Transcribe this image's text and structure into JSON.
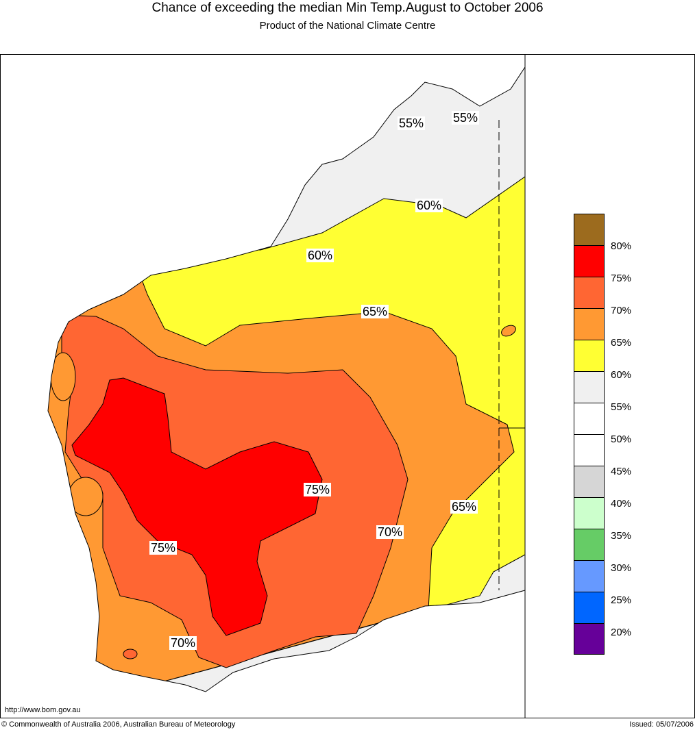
{
  "title": "Chance of exceeding the median Min Temp.August to October 2006",
  "subtitle": "Product of the National Climate Centre",
  "map_labels": [
    "55%",
    "55%",
    "60%",
    "60%",
    "65%",
    "65%",
    "70%",
    "70%",
    "75%",
    "75%"
  ],
  "legend": {
    "colors": [
      "#9c6b1e",
      "#ff0000",
      "#ff6633",
      "#ff9933",
      "#ffff33",
      "#f0f0f0",
      "#ffffff",
      "#ffffff",
      "#d6d6d6",
      "#ccffcc",
      "#66cc66",
      "#6699ff",
      "#0066ff",
      "#660099"
    ],
    "labels": [
      "80%",
      "75%",
      "70%",
      "65%",
      "60%",
      "55%",
      "50%",
      "45%",
      "40%",
      "35%",
      "30%",
      "25%",
      "20%"
    ]
  },
  "footer": {
    "url": "http://www.bom.gov.au",
    "copyright": "© Commonwealth of Australia 2006, Australian Bureau of Meteorology",
    "issued": "Issued: 05/07/2006"
  }
}
